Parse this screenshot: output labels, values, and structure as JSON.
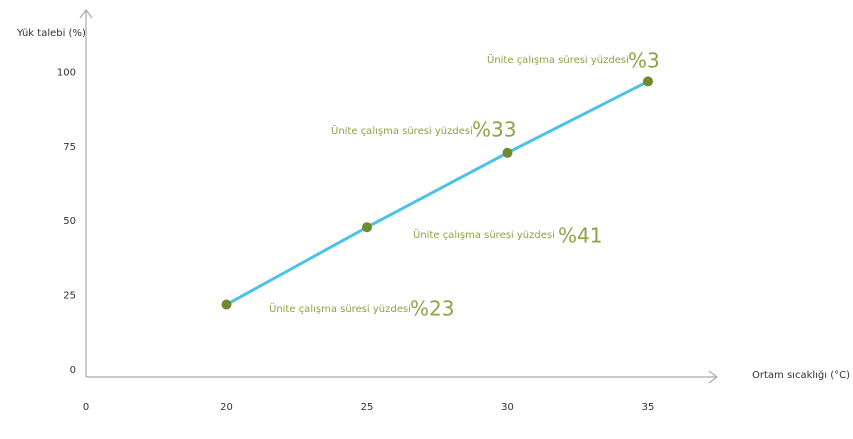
{
  "chart_data": {
    "type": "line",
    "y_label": "Yük talebi (%)",
    "x_label": "Ortam sıcaklığı (°C)",
    "categories": [
      "0",
      "20",
      "25",
      "30",
      "35"
    ],
    "series": [
      {
        "color": "#4ec2e6",
        "marker_color": "#6e8b2f",
        "values": [
          null,
          22,
          48,
          73,
          97
        ]
      }
    ],
    "ylim": [
      0,
      121
    ],
    "yticks": [
      0,
      25,
      50,
      75,
      100
    ],
    "annotations": [
      {
        "text": "Ünite çalışma süresi yüzdesi",
        "value": "%23"
      },
      {
        "text": "Ünite çalışma süresi yüzdesi",
        "value": "%41"
      },
      {
        "text": "Ünite çalışma süresi yüzdesi",
        "value": "%33"
      },
      {
        "text": "Ünite çalışma süresi yüzdesi",
        "value": "%3"
      }
    ]
  }
}
